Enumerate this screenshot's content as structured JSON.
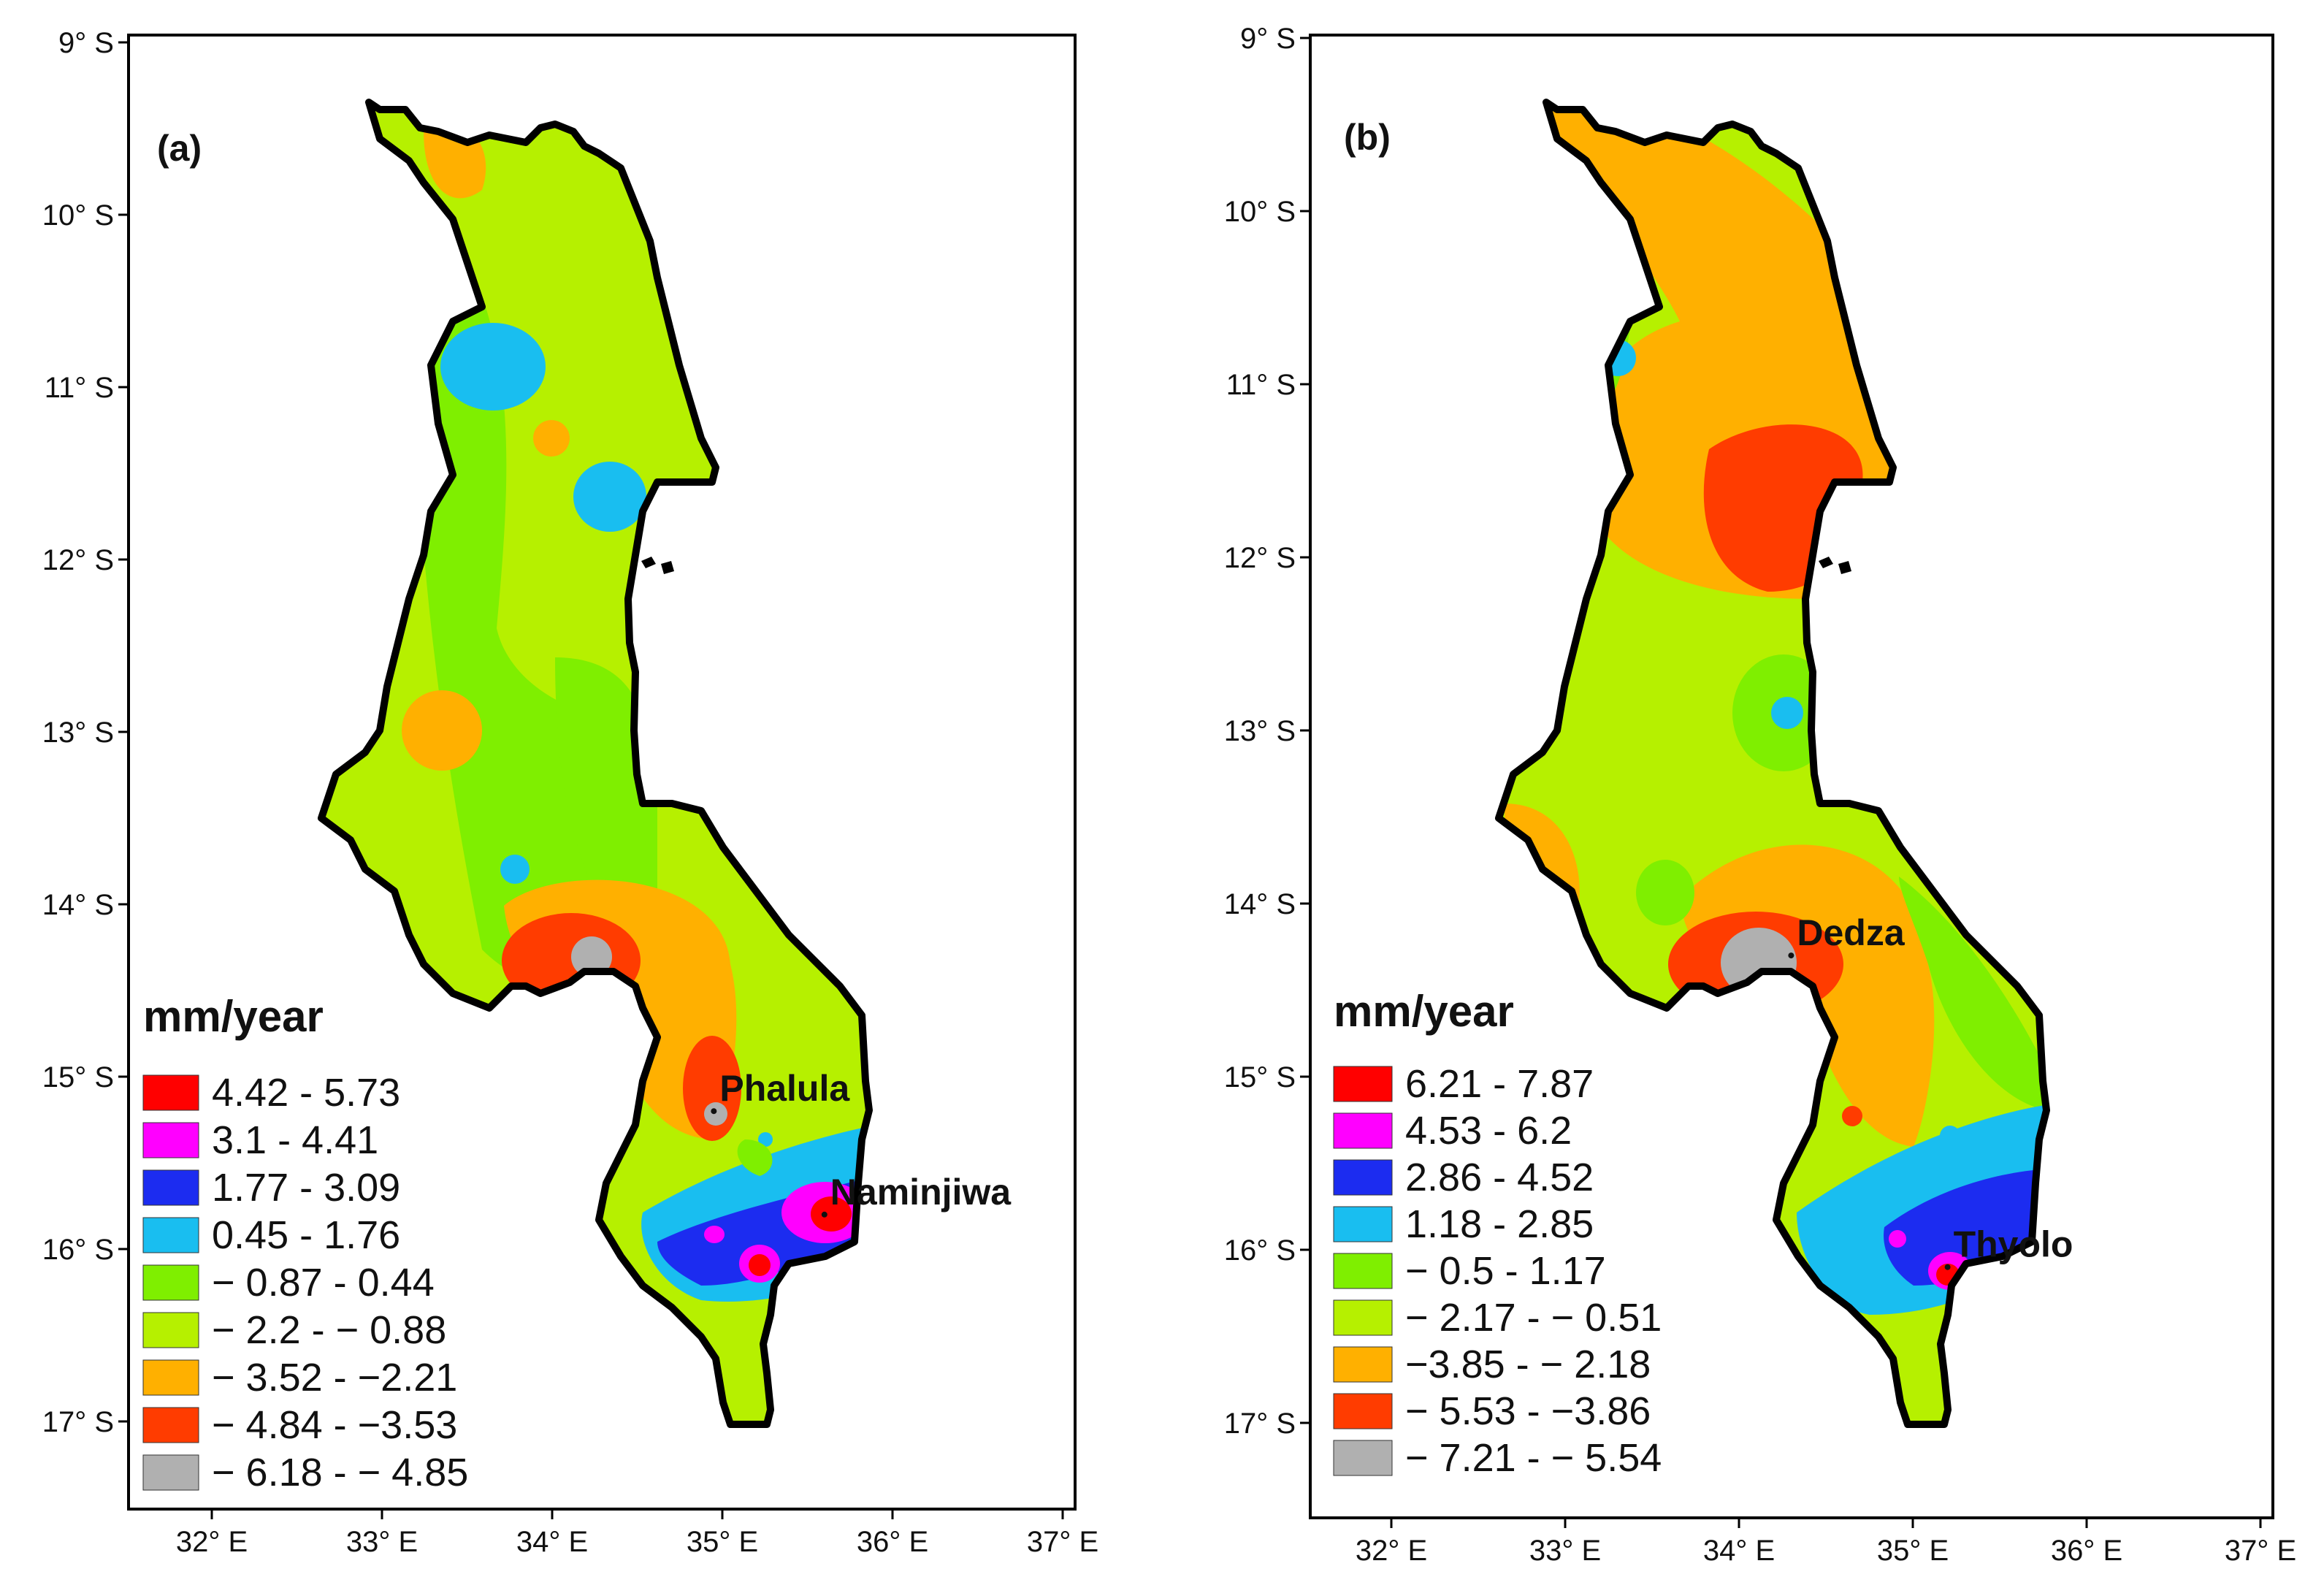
{
  "colors": {
    "red": "#ff0000",
    "magenta": "#ff00ff",
    "blue": "#1c2cf0",
    "cyan": "#19bef0",
    "green": "#7fef00",
    "lime": "#b6f000",
    "orange": "#ffb000",
    "redorange": "#ff3c00",
    "gray": "#b0b0b0",
    "outline": "#000000"
  },
  "panels": [
    {
      "label": "(a)",
      "y_ticks": [
        "9° S",
        "10° S",
        "11° S",
        "12° S",
        "13° S",
        "14° S",
        "15° S",
        "16° S",
        "17° S"
      ],
      "x_ticks": [
        "32° E",
        "33° E",
        "34° E",
        "35° E",
        "36° E",
        "37° E"
      ],
      "legend": {
        "title": "mm/year",
        "items": [
          {
            "label": "4.42 - 5.73",
            "color": "#ff0000"
          },
          {
            "label": "3.1 - 4.41",
            "color": "#ff00ff"
          },
          {
            "label": "1.77 - 3.09",
            "color": "#1c2cf0"
          },
          {
            "label": "0.45 - 1.76",
            "color": "#19bef0"
          },
          {
            "label": "− 0.87 - 0.44",
            "color": "#7fef00"
          },
          {
            "label": "− 2.2 - − 0.88",
            "color": "#b6f000"
          },
          {
            "label": "− 3.52 - −2.21",
            "color": "#ffb000"
          },
          {
            "label": "− 4.84 - −3.53",
            "color": "#ff3c00"
          },
          {
            "label": "− 6.18 - − 4.85",
            "color": "#b0b0b0"
          }
        ]
      },
      "stations": [
        {
          "name": "Phalula",
          "lon": 34.95,
          "lat": -15.2
        },
        {
          "name": "Naminjiwa",
          "lon": 35.6,
          "lat": -15.8
        }
      ]
    },
    {
      "label": "(b)",
      "y_ticks": [
        "9° S",
        "10° S",
        "11° S",
        "12° S",
        "13° S",
        "14° S",
        "15° S",
        "16° S",
        "17° S"
      ],
      "x_ticks": [
        "32° E",
        "33° E",
        "34° E",
        "35° E",
        "36° E",
        "37° E"
      ],
      "legend": {
        "title": "mm/year",
        "items": [
          {
            "label": "6.21 - 7.87",
            "color": "#ff0000"
          },
          {
            "label": "4.53 - 6.2",
            "color": "#ff00ff"
          },
          {
            "label": "2.86 - 4.52",
            "color": "#1c2cf0"
          },
          {
            "label": "1.18 - 2.85",
            "color": "#19bef0"
          },
          {
            "label": "− 0.5 - 1.17",
            "color": "#7fef00"
          },
          {
            "label": "− 2.17 - − 0.51",
            "color": "#b6f000"
          },
          {
            "label": "−3.85 - − 2.18",
            "color": "#ffb000"
          },
          {
            "label": "− 5.53 - −3.86",
            "color": "#ff3c00"
          },
          {
            "label": "− 7.21 - − 5.54",
            "color": "#b0b0b0"
          }
        ]
      },
      "stations": [
        {
          "name": "Dedza",
          "lon": 34.3,
          "lat": -14.3
        },
        {
          "name": "Thyolo",
          "lon": 35.2,
          "lat": -16.1
        }
      ]
    }
  ]
}
